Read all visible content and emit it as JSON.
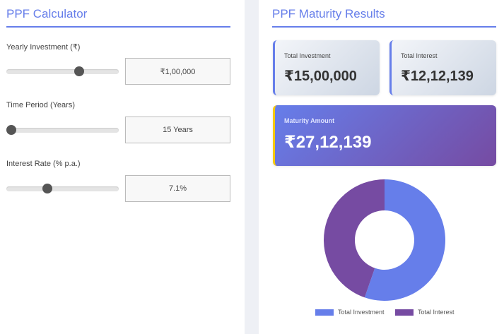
{
  "calculator": {
    "title": "PPF Calculator",
    "fields": [
      {
        "label": "Yearly Investment (₹)",
        "value": "₹1,00,000",
        "slider_fraction": 0.66
      },
      {
        "label": "Time Period (Years)",
        "value": "15 Years",
        "slider_fraction": 0.0
      },
      {
        "label": "Interest Rate (% p.a.)",
        "value": "7.1%",
        "slider_fraction": 0.35
      }
    ]
  },
  "results": {
    "title": "PPF Maturity Results",
    "total_investment": {
      "label": "Total Investment",
      "value": "₹15,00,000"
    },
    "total_interest": {
      "label": "Total Interest",
      "value": "₹12,12,139"
    },
    "maturity": {
      "label": "Maturity Amount",
      "value": "₹27,12,139"
    }
  },
  "chart_data": {
    "type": "pie",
    "donut": true,
    "categories": [
      "Total Investment",
      "Total Interest"
    ],
    "values": [
      1500000,
      1212139
    ],
    "colors": [
      "#667eea",
      "#764ba2"
    ],
    "legend": "bottom"
  }
}
